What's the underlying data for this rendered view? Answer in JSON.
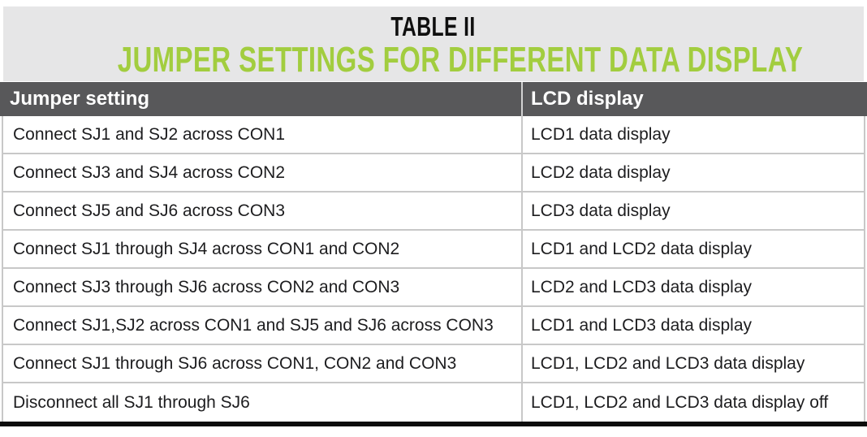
{
  "title": {
    "kicker": "TABLE II",
    "headline": "JUMPER SETTINGS FOR DIFFERENT DATA DISPLAY"
  },
  "table": {
    "columns": [
      "Jumper setting",
      "LCD display"
    ],
    "rows": [
      [
        "Connect SJ1 and SJ2 across CON1",
        "LCD1 data display"
      ],
      [
        "Connect SJ3 and SJ4 across CON2",
        "LCD2 data display"
      ],
      [
        "Connect SJ5 and SJ6 across CON3",
        "LCD3 data display"
      ],
      [
        "Connect SJ1 through SJ4 across CON1 and CON2",
        "LCD1 and LCD2 data display"
      ],
      [
        "Connect SJ3 through SJ6 across CON2 and CON3",
        "LCD2 and LCD3 data display"
      ],
      [
        "Connect SJ1,SJ2 across CON1 and SJ5 and SJ6 across CON3",
        "LCD1 and LCD3 data display"
      ],
      [
        "Connect SJ1 through SJ6 across CON1, CON2 and CON3",
        "LCD1, LCD2 and LCD3 data display"
      ],
      [
        "Disconnect all SJ1 through SJ6",
        "LCD1, LCD2 and LCD3 data display off"
      ]
    ]
  },
  "colors": {
    "accent_green": "#a2cd3f",
    "header_row_bg": "#58585a",
    "title_banner_bg": "#e6e6e7",
    "rule_gray": "#c8c8c8",
    "bottom_bar": "#0c0c0c"
  }
}
